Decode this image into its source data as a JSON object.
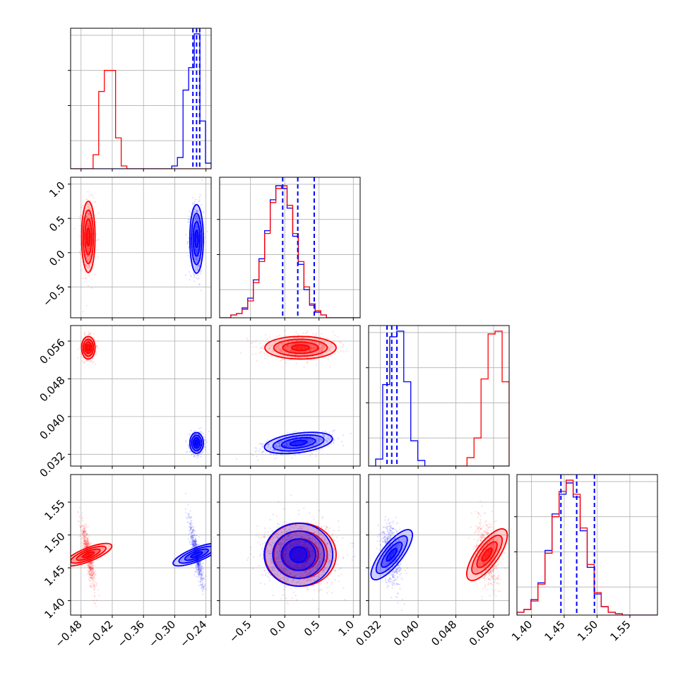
{
  "chart_data": {
    "type": "corner",
    "grid": true,
    "colors": {
      "red": "#ff0000",
      "blue": "#0000ff"
    },
    "parameters": [
      {
        "index": 0,
        "range": [
          -0.5,
          -0.23
        ],
        "ticks": [
          -0.48,
          -0.42,
          -0.36,
          -0.3,
          -0.24
        ],
        "tick_labels": [
          "−0.48",
          "−0.42",
          "−0.36",
          "−0.30",
          "−0.24"
        ]
      },
      {
        "index": 1,
        "range": [
          -0.95,
          1.1
        ],
        "ticks": [
          -0.5,
          0.0,
          0.5,
          1.0
        ],
        "tick_labels": [
          "−0.5",
          "0.0",
          "0.5",
          "1.0"
        ]
      },
      {
        "index": 2,
        "range": [
          0.0295,
          0.0593
        ],
        "ticks": [
          0.032,
          0.04,
          0.048,
          0.056
        ],
        "tick_labels": [
          "0.032",
          "0.040",
          "0.048",
          "0.056"
        ]
      },
      {
        "index": 3,
        "range": [
          1.378,
          1.592
        ],
        "ticks": [
          1.4,
          1.45,
          1.5,
          1.55
        ],
        "tick_labels": [
          "1.40",
          "1.45",
          "1.50",
          "1.55"
        ]
      }
    ],
    "series": [
      {
        "color": "red",
        "mean": [
          -0.466,
          0.23,
          0.0546,
          1.47
        ],
        "std": [
          0.0065,
          0.26,
          0.0012,
          0.024
        ],
        "correlation": [
          [
            0,
            0,
            0,
            -0.85
          ],
          [
            0,
            0,
            0,
            0
          ],
          [
            0,
            0,
            0,
            -0.3
          ],
          [
            -0.85,
            0,
            -0.3,
            0
          ]
        ]
      },
      {
        "color": "blue",
        "mean": [
          -0.258,
          0.2,
          0.0344,
          1.47
        ],
        "std": [
          0.0065,
          0.25,
          0.0011,
          0.024
        ],
        "correlation": [
          [
            0,
            0,
            0,
            -0.85
          ],
          [
            0,
            0,
            0.5,
            0
          ],
          [
            0,
            0.5,
            0,
            -0.3
          ],
          [
            -0.85,
            0,
            -0.3,
            0
          ]
        ]
      }
    ],
    "quantile_lines": [
      {
        "param": 0,
        "values": [
          -0.265,
          -0.258,
          -0.252
        ]
      },
      {
        "param": 1,
        "values": [
          -0.03,
          0.19,
          0.43
        ]
      },
      {
        "param": 2,
        "values": [
          0.0334,
          0.0344,
          0.0355
        ]
      },
      {
        "param": 3,
        "values": [
          1.445,
          1.469,
          1.496
        ]
      }
    ],
    "histograms": [
      {
        "param": 0,
        "bins": 25,
        "red": [
          0,
          0,
          0,
          0,
          0.1,
          0.55,
          0.7,
          0.7,
          0.22,
          0.02,
          0,
          0,
          0,
          0,
          0,
          0,
          0,
          0,
          0,
          0,
          0,
          0,
          0,
          0,
          0
        ],
        "blue": [
          0,
          0,
          0,
          0,
          0,
          0,
          0,
          0,
          0,
          0,
          0,
          0,
          0,
          0,
          0,
          0,
          0,
          0,
          0.02,
          0.08,
          0.56,
          0.72,
          0.96,
          0.34,
          0.04
        ]
      },
      {
        "param": 1,
        "bins": 25,
        "red": [
          0,
          0,
          0.02,
          0.03,
          0.06,
          0.12,
          0.25,
          0.4,
          0.6,
          0.82,
          0.92,
          0.94,
          0.8,
          0.6,
          0.4,
          0.22,
          0.1,
          0.05,
          0.02,
          0,
          0,
          0,
          0,
          0,
          0
        ],
        "blue": [
          0,
          0,
          0.02,
          0.03,
          0.07,
          0.14,
          0.27,
          0.42,
          0.62,
          0.84,
          0.94,
          0.92,
          0.78,
          0.58,
          0.38,
          0.2,
          0.09,
          0.04,
          0.02,
          0,
          0,
          0,
          0,
          0,
          0
        ]
      },
      {
        "param": 2,
        "bins": 20,
        "red": [
          0,
          0,
          0,
          0,
          0,
          0,
          0,
          0,
          0,
          0,
          0,
          0,
          0,
          0,
          0.06,
          0.2,
          0.62,
          0.94,
          0.96,
          0.6
        ],
        "blue": [
          0,
          0.05,
          0.58,
          0.92,
          0.96,
          0.6,
          0.18,
          0.04,
          0,
          0,
          0,
          0,
          0,
          0,
          0,
          0,
          0,
          0,
          0,
          0
        ]
      },
      {
        "param": 3,
        "bins": 20,
        "red": [
          0.02,
          0.04,
          0.1,
          0.22,
          0.44,
          0.7,
          0.88,
          0.96,
          0.86,
          0.62,
          0.36,
          0.16,
          0.06,
          0.02,
          0.01,
          0,
          0,
          0,
          0,
          0
        ],
        "blue": [
          0.02,
          0.04,
          0.11,
          0.23,
          0.46,
          0.72,
          0.86,
          0.94,
          0.84,
          0.6,
          0.34,
          0.15,
          0.06,
          0.02,
          0.01,
          0,
          0,
          0,
          0,
          0
        ]
      }
    ]
  }
}
